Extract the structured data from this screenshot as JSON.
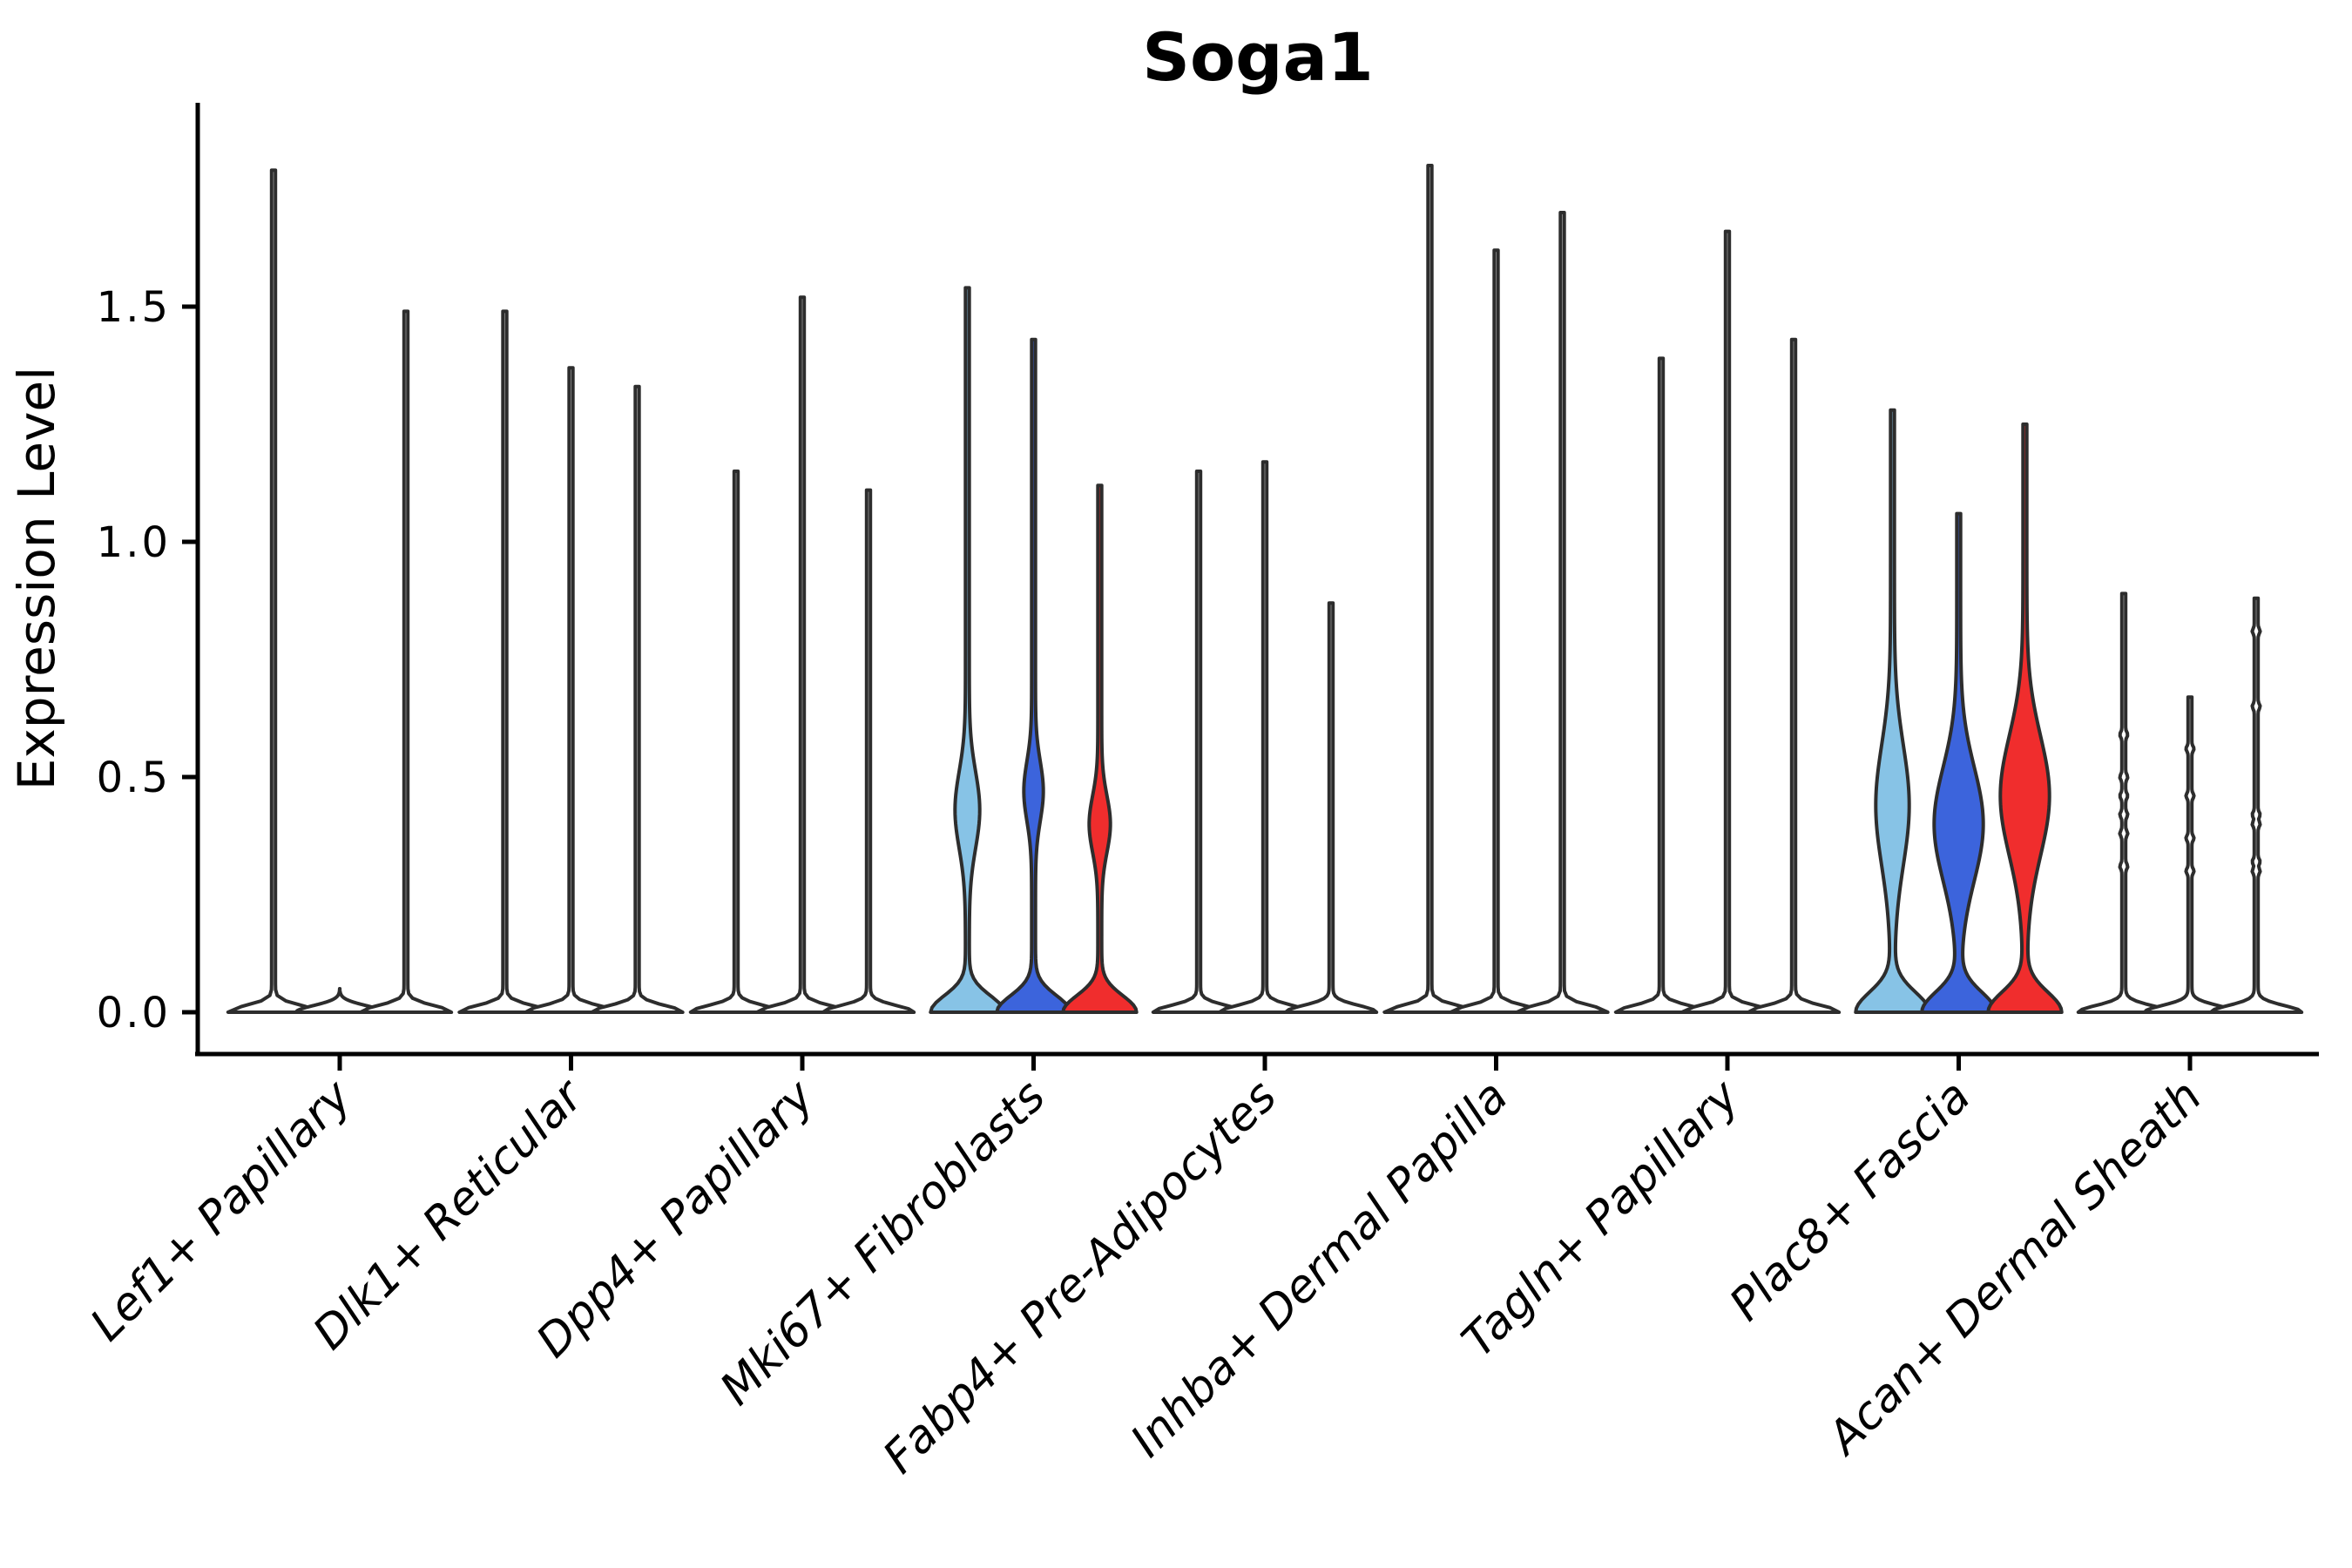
{
  "title": "Soga1",
  "axes": {
    "ylabel": "Expression Level",
    "ytick_labels": [
      "0.0",
      "0.5",
      "1.0",
      "1.5"
    ]
  },
  "colors": {
    "background": "#FFFFFF",
    "axis": "#000000",
    "violin_outline": "#2D2D2D",
    "series_skyblue": "#87C3E6",
    "series_blue": "#3C64DC",
    "series_red": "#F02D2D"
  },
  "chart_data": {
    "type": "violin",
    "title": "Soga1",
    "xlabel": "",
    "ylabel": "Expression Level",
    "yticks": [
      0.0,
      0.5,
      1.0,
      1.5
    ],
    "ytick_labels": [
      "0.0",
      "0.5",
      "1.0",
      "1.5"
    ],
    "ylim": [
      -0.09,
      1.93
    ],
    "grid": false,
    "legend": false,
    "categories": [
      "Lef1+ Papillary",
      "Dlk1+ Reticular",
      "Dpp4+ Papillary",
      "Mki67+ Fibroblasts",
      "Fabp4+ Pre-Adipocytes",
      "Inhba+ Dermal Papilla",
      "Tagln+ Papillary",
      "Plac8+ Fascia",
      "Acan+ Dermal Sheath"
    ],
    "series": [
      {
        "name": "violin-1-skyblue",
        "color": "#87C3E6",
        "max_expression": [
          1.79,
          1.49,
          1.15,
          1.54,
          1.15,
          1.8,
          1.39,
          1.28,
          0.89
        ]
      },
      {
        "name": "violin-2-blue",
        "color": "#3C64DC",
        "max_expression": [
          0.02,
          1.37,
          1.52,
          1.43,
          1.17,
          1.62,
          1.66,
          1.06,
          0.67
        ]
      },
      {
        "name": "violin-3-red",
        "color": "#F02D2D",
        "max_expression": [
          1.49,
          1.33,
          1.11,
          1.12,
          0.87,
          1.7,
          1.43,
          1.25,
          0.88
        ]
      }
    ],
    "filled_categories": [
      "Mki67+ Fibroblasts",
      "Plac8+ Fascia"
    ],
    "shapes": [
      {
        "category": "Lef1+ Papillary",
        "filled": false,
        "violins": [
          {
            "max": 1.79,
            "base_w": 50,
            "base_sigma": 0.02,
            "bulge": null,
            "bumps": []
          },
          {
            "max": 0.02,
            "base_w": 50,
            "base_sigma": 0.02,
            "bulge": null,
            "bumps": []
          },
          {
            "max": 1.49,
            "base_w": 50,
            "base_sigma": 0.02,
            "bulge": null,
            "bumps": []
          }
        ]
      },
      {
        "category": "Dlk1+ Reticular",
        "filled": false,
        "violins": [
          {
            "max": 1.49,
            "base_w": 50,
            "base_sigma": 0.02,
            "bulge": null,
            "bumps": []
          },
          {
            "max": 1.37,
            "base_w": 50,
            "base_sigma": 0.02,
            "bulge": null,
            "bumps": []
          },
          {
            "max": 1.33,
            "base_w": 50,
            "base_sigma": 0.02,
            "bulge": null,
            "bumps": []
          }
        ]
      },
      {
        "category": "Dpp4+ Papillary",
        "filled": false,
        "violins": [
          {
            "max": 1.15,
            "base_w": 50,
            "base_sigma": 0.02,
            "bulge": null,
            "bumps": []
          },
          {
            "max": 1.52,
            "base_w": 50,
            "base_sigma": 0.02,
            "bulge": null,
            "bumps": []
          },
          {
            "max": 1.11,
            "base_w": 50,
            "base_sigma": 0.02,
            "bulge": null,
            "bumps": []
          }
        ]
      },
      {
        "category": "Mki67+ Fibroblasts",
        "filled": true,
        "violins": [
          {
            "max": 1.54,
            "base_w": 40,
            "base_sigma": 0.05,
            "bulge": {
              "mu": 0.43,
              "sigma": 0.115,
              "amp": 12
            },
            "bumps": []
          },
          {
            "max": 1.43,
            "base_w": 40,
            "base_sigma": 0.05,
            "bulge": {
              "mu": 0.47,
              "sigma": 0.09,
              "amp": 9
            },
            "bumps": []
          },
          {
            "max": 1.12,
            "base_w": 40,
            "base_sigma": 0.05,
            "bulge": {
              "mu": 0.4,
              "sigma": 0.085,
              "amp": 10
            },
            "bumps": []
          }
        ]
      },
      {
        "category": "Fabp4+ Pre-Adipocytes",
        "filled": false,
        "violins": [
          {
            "max": 1.15,
            "base_w": 50,
            "base_sigma": 0.02,
            "bulge": null,
            "bumps": []
          },
          {
            "max": 1.17,
            "base_w": 50,
            "base_sigma": 0.02,
            "bulge": null,
            "bumps": []
          },
          {
            "max": 0.87,
            "base_w": 50,
            "base_sigma": 0.02,
            "bulge": null,
            "bumps": []
          }
        ]
      },
      {
        "category": "Inhba+ Dermal Papilla",
        "filled": false,
        "violins": [
          {
            "max": 1.8,
            "base_w": 50,
            "base_sigma": 0.02,
            "bulge": null,
            "bumps": []
          },
          {
            "max": 1.62,
            "base_w": 50,
            "base_sigma": 0.02,
            "bulge": null,
            "bumps": []
          },
          {
            "max": 1.7,
            "base_w": 50,
            "base_sigma": 0.02,
            "bulge": null,
            "bumps": []
          }
        ]
      },
      {
        "category": "Tagln+ Papillary",
        "filled": false,
        "violins": [
          {
            "max": 1.39,
            "base_w": 50,
            "base_sigma": 0.02,
            "bulge": null,
            "bumps": []
          },
          {
            "max": 1.66,
            "base_w": 50,
            "base_sigma": 0.02,
            "bulge": null,
            "bumps": []
          },
          {
            "max": 1.43,
            "base_w": 50,
            "base_sigma": 0.02,
            "bulge": null,
            "bumps": []
          }
        ]
      },
      {
        "category": "Plac8+ Fascia",
        "filled": true,
        "violins": [
          {
            "max": 1.28,
            "base_w": 40,
            "base_sigma": 0.06,
            "bulge": {
              "mu": 0.44,
              "sigma": 0.18,
              "amp": 17
            },
            "bumps": []
          },
          {
            "max": 1.06,
            "base_w": 40,
            "base_sigma": 0.06,
            "bulge": {
              "mu": 0.4,
              "sigma": 0.17,
              "amp": 26
            },
            "bumps": []
          },
          {
            "max": 1.25,
            "base_w": 40,
            "base_sigma": 0.06,
            "bulge": {
              "mu": 0.46,
              "sigma": 0.18,
              "amp": 26
            },
            "bumps": []
          }
        ]
      },
      {
        "category": "Acan+ Dermal Sheath",
        "filled": false,
        "violins": [
          {
            "max": 0.89,
            "base_w": 50,
            "base_sigma": 0.02,
            "bulge": null,
            "bumps": [
              0.59,
              0.5,
              0.46,
              0.42,
              0.38,
              0.31
            ]
          },
          {
            "max": 0.67,
            "base_w": 50,
            "base_sigma": 0.02,
            "bulge": null,
            "bumps": [
              0.56,
              0.46,
              0.37,
              0.3
            ]
          },
          {
            "max": 0.88,
            "base_w": 50,
            "base_sigma": 0.02,
            "bulge": null,
            "bumps": [
              0.81,
              0.65,
              0.42,
              0.4,
              0.32,
              0.3
            ]
          }
        ]
      }
    ]
  }
}
